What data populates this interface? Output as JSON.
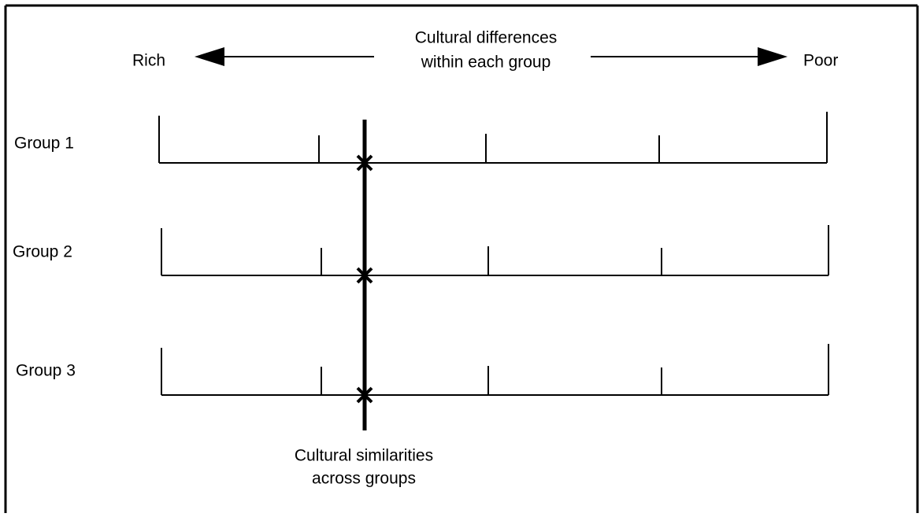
{
  "axis": {
    "left_label": "Rich",
    "right_label": "Poor",
    "title_lines": [
      "Cultural differences",
      "within each group"
    ]
  },
  "groups": [
    {
      "label": "Group 1"
    },
    {
      "label": "Group 2"
    },
    {
      "label": "Group 3"
    }
  ],
  "similarity_label_lines": [
    "Cultural similarities",
    "across groups"
  ]
}
